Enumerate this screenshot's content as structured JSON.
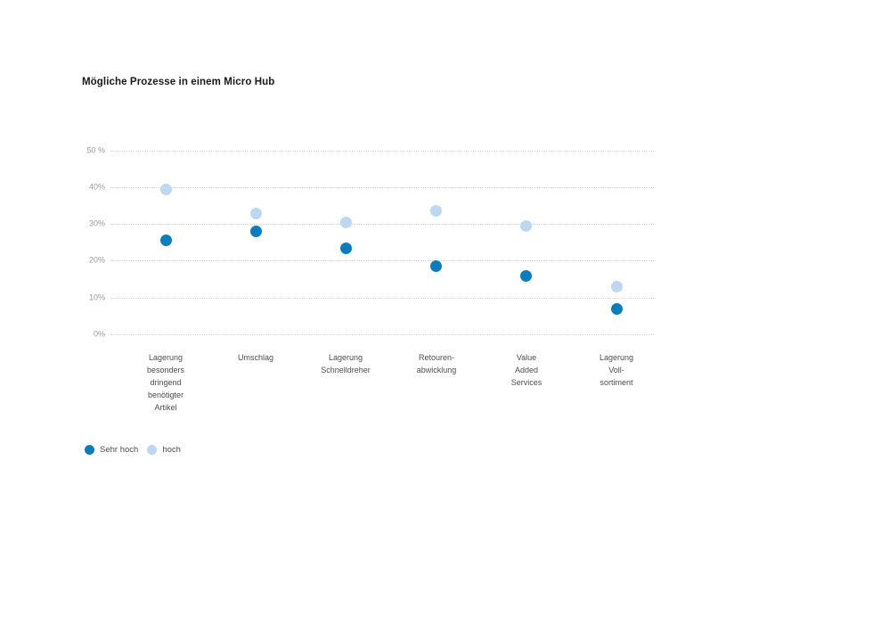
{
  "chart_data": {
    "type": "scatter",
    "title": "Mögliche Prozesse in einem Micro Hub",
    "categories": [
      "Lagerung\nbesonders\ndringend\nbenötigter\nArtikel",
      "Umschlag",
      "Lagerung\nSchnelldreher",
      "Retouren-\nabwicklung",
      "Value\nAdded\nServices",
      "Lagerung\nVoll-\nsortiment"
    ],
    "series": [
      {
        "name": "Sehr hoch",
        "color": "#0d7cbd",
        "values": [
          25.5,
          28,
          23.5,
          18.5,
          16,
          7
        ]
      },
      {
        "name": "hoch",
        "color": "#bdd7ee",
        "values": [
          39.5,
          33,
          30.5,
          33.5,
          29.5,
          13
        ]
      }
    ],
    "y_ticks": [
      "50 %",
      "40%",
      "30%",
      "20%",
      "10%",
      "0%"
    ],
    "ylim": [
      0,
      50
    ],
    "grid": "horizontal-dotted",
    "legend_position": "bottom-left"
  }
}
